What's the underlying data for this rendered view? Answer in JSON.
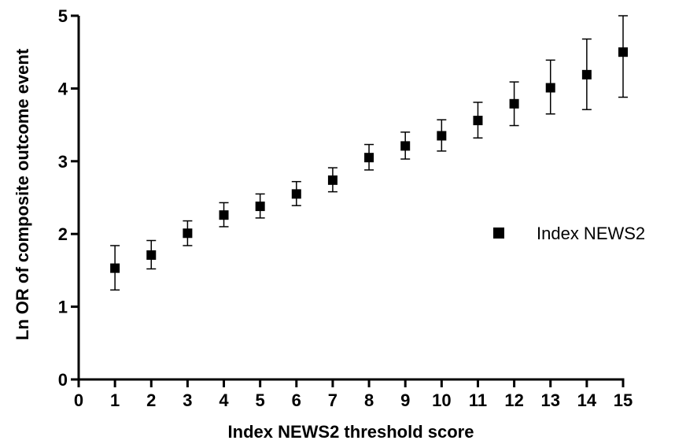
{
  "chart_data": {
    "type": "scatter",
    "title": "",
    "xlabel": "Index NEWS2 threshold score",
    "ylabel": "Ln OR of composite outcome event",
    "xlim": [
      0,
      15
    ],
    "ylim": [
      0,
      5
    ],
    "x_ticks": [
      "0",
      "1",
      "2",
      "3",
      "4",
      "5",
      "6",
      "7",
      "8",
      "9",
      "10",
      "11",
      "12",
      "13",
      "14",
      "15"
    ],
    "y_ticks": [
      "0",
      "1",
      "2",
      "3",
      "4",
      "5"
    ],
    "grid": false,
    "legend_position": "right",
    "series": [
      {
        "name": "Index NEWS2",
        "color": "#000000",
        "marker": "square",
        "x": [
          1,
          2,
          3,
          4,
          5,
          6,
          7,
          8,
          9,
          10,
          11,
          12,
          13,
          14,
          15
        ],
        "y": [
          1.53,
          1.71,
          2.01,
          2.26,
          2.38,
          2.55,
          2.74,
          3.05,
          3.21,
          3.35,
          3.56,
          3.79,
          4.01,
          4.19,
          4.5
        ],
        "low": [
          1.23,
          1.52,
          1.84,
          2.1,
          2.22,
          2.39,
          2.58,
          2.88,
          3.03,
          3.14,
          3.32,
          3.49,
          3.65,
          3.71,
          3.88
        ],
        "high": [
          1.84,
          1.91,
          2.18,
          2.43,
          2.55,
          2.72,
          2.91,
          3.23,
          3.4,
          3.57,
          3.81,
          4.09,
          4.39,
          4.68,
          5.0
        ]
      }
    ]
  }
}
